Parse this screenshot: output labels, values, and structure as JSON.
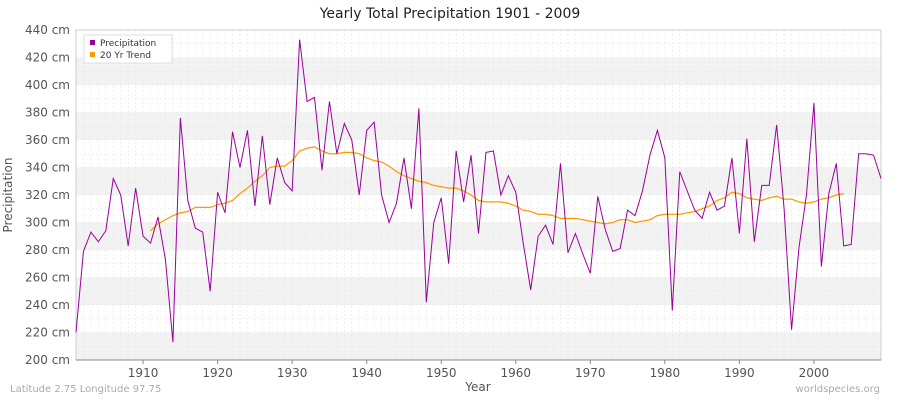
{
  "title": "Yearly Total Precipitation 1901 - 2009",
  "footer": {
    "location": "Latitude 2.75 Longitude 97.75",
    "credit": "worldspecies.org"
  },
  "colors": {
    "precip": "#990099",
    "trend": "#ff9900",
    "band": "#f2f2f2",
    "grid": "#dddddd"
  },
  "chart_data": {
    "type": "line",
    "title": "Yearly Total Precipitation 1901 - 2009",
    "xlabel": "Year",
    "ylabel": "Precipitation",
    "xlim": [
      1901,
      2009
    ],
    "ylim": [
      200,
      440
    ],
    "x_ticks": [
      1910,
      1920,
      1930,
      1940,
      1950,
      1960,
      1970,
      1980,
      1990,
      2000
    ],
    "y_ticks": [
      200,
      220,
      240,
      260,
      280,
      300,
      320,
      340,
      360,
      380,
      400,
      420,
      440
    ],
    "y_unit": "cm",
    "grid": true,
    "legend": "top-left",
    "series": [
      {
        "name": "Precipitation",
        "color": "#990099",
        "x_start": 1901,
        "values": [
          220,
          279,
          293,
          286,
          294,
          332,
          320,
          283,
          325,
          290,
          285,
          304,
          273,
          213,
          376,
          316,
          296,
          293,
          250,
          322,
          307,
          366,
          340,
          367,
          312,
          363,
          313,
          347,
          329,
          323,
          433,
          388,
          391,
          338,
          388,
          350,
          372,
          360,
          320,
          367,
          373,
          320,
          300,
          314,
          347,
          310,
          383,
          242,
          300,
          318,
          270,
          352,
          315,
          349,
          292,
          351,
          352,
          320,
          334,
          322,
          285,
          251,
          290,
          298,
          284,
          343,
          278,
          292,
          277,
          263,
          319,
          295,
          279,
          281,
          309,
          305,
          323,
          349,
          367,
          347,
          236,
          337,
          323,
          309,
          303,
          322,
          309,
          312,
          347,
          292,
          361,
          286,
          327,
          327,
          371,
          310,
          222,
          282,
          320,
          387,
          268,
          321,
          343,
          283,
          284,
          350,
          350,
          349,
          332
        ]
      },
      {
        "name": "20 Yr Trend",
        "color": "#ff9900",
        "x_start": 1911,
        "values": [
          294,
          299,
          302,
          305,
          307,
          308,
          311,
          311,
          311,
          313,
          314,
          316,
          321,
          325,
          330,
          334,
          340,
          341,
          341,
          345,
          352,
          354,
          355,
          352,
          350,
          350,
          351,
          351,
          350,
          347,
          345,
          344,
          341,
          337,
          334,
          332,
          330,
          329,
          327,
          326,
          325,
          325,
          323,
          320,
          316,
          315,
          315,
          315,
          314,
          312,
          309,
          308,
          306,
          306,
          305,
          303,
          303,
          303,
          302,
          301,
          300,
          299,
          300,
          302,
          302,
          300,
          301,
          302,
          305,
          306,
          306,
          306,
          307,
          308,
          310,
          312,
          316,
          318,
          322,
          321,
          318,
          317,
          316,
          318,
          319,
          317,
          317,
          315,
          314,
          315,
          317,
          318,
          320,
          321
        ]
      }
    ]
  }
}
